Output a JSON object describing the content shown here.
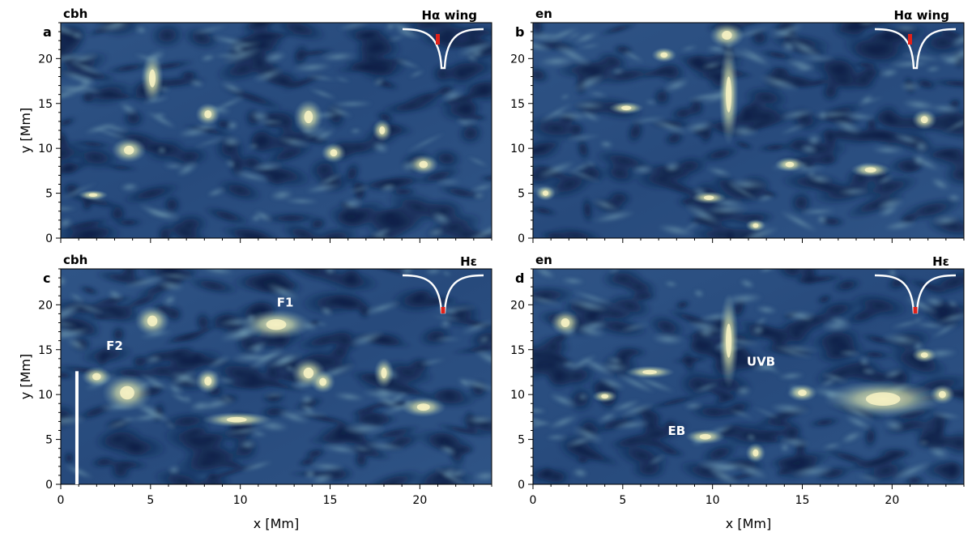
{
  "figure": {
    "panels": [
      {
        "id": "a",
        "letter": "a",
        "model": "cbh",
        "line": "Hα wing",
        "profile_marker": "wing",
        "show_xlabel": false,
        "show_ylabel": true,
        "annotations": [],
        "has_scale_bar": false
      },
      {
        "id": "b",
        "letter": "b",
        "model": "en",
        "line": "Hα wing",
        "profile_marker": "wing",
        "show_xlabel": false,
        "show_ylabel": false,
        "annotations": [],
        "has_scale_bar": false
      },
      {
        "id": "c",
        "letter": "c",
        "model": "cbh",
        "line": "Hε",
        "profile_marker": "core",
        "show_xlabel": true,
        "show_ylabel": true,
        "annotations": [
          {
            "text": "F1",
            "x_mm": 12.5,
            "y_mm": 19.8
          },
          {
            "text": "F2",
            "x_mm": 3.0,
            "y_mm": 15.0
          }
        ],
        "has_scale_bar": true
      },
      {
        "id": "d",
        "letter": "d",
        "model": "en",
        "line": "Hε",
        "profile_marker": "core",
        "show_xlabel": true,
        "show_ylabel": false,
        "annotations": [
          {
            "text": "UVB",
            "x_mm": 12.7,
            "y_mm": 13.2
          },
          {
            "text": "EB",
            "x_mm": 8.0,
            "y_mm": 5.5
          }
        ],
        "has_scale_bar": false
      }
    ],
    "axes": {
      "xlabel": "x [Mm]",
      "ylabel": "y [Mm]",
      "xlim": [
        0,
        24
      ],
      "ylim": [
        0,
        24
      ],
      "xticks": [
        0,
        5,
        10,
        15,
        20
      ],
      "yticks": [
        0,
        5,
        10,
        15,
        20
      ]
    },
    "colors": {
      "dark": "#0e2046",
      "mid": "#2f5486",
      "light": "#6b95ad",
      "bright": "#f4f0c2",
      "profile_line": "#ffffff",
      "marker": "#e0211a"
    }
  }
}
